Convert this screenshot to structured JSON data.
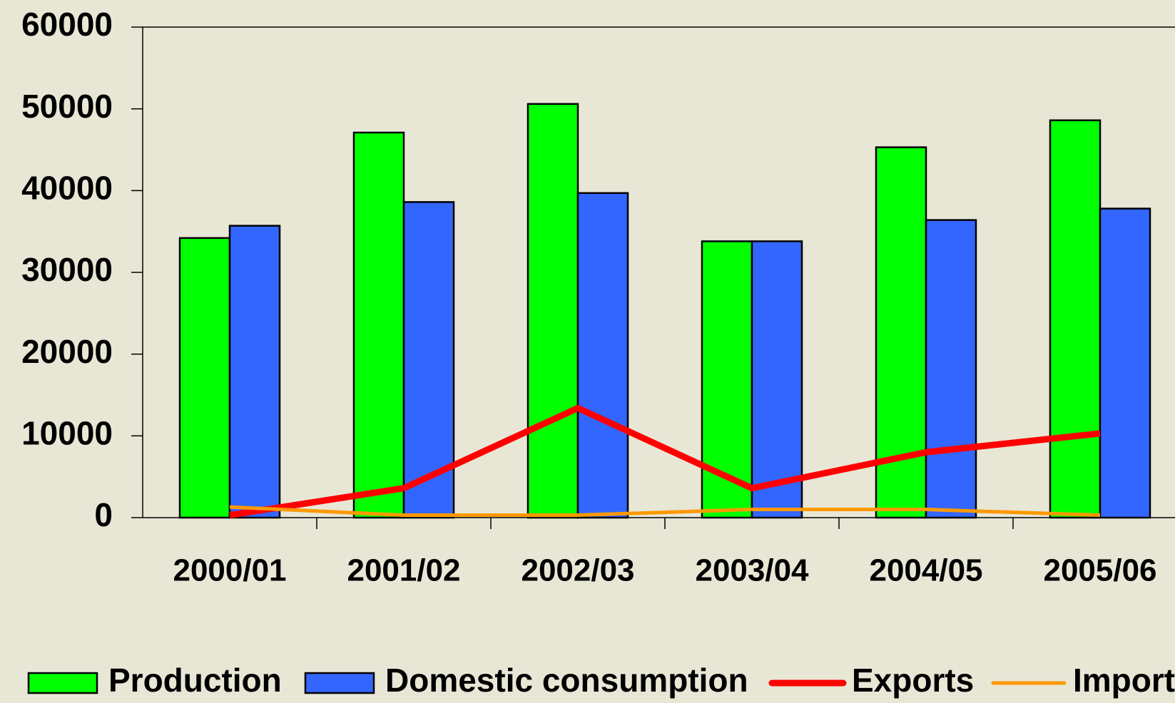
{
  "chart_data": {
    "type": "bar",
    "categories": [
      "2000/01",
      "2001/02",
      "2002/03",
      "2003/04",
      "2004/05",
      "2005/06"
    ],
    "series": [
      {
        "name": "Production",
        "type": "bar",
        "color": "#00ff00",
        "values": [
          34200,
          47100,
          50600,
          33800,
          45300,
          48600
        ]
      },
      {
        "name": "Domestic consumption",
        "type": "bar",
        "color": "#3366ff",
        "values": [
          35700,
          38600,
          39700,
          33800,
          36400,
          37800
        ]
      },
      {
        "name": "Exports",
        "type": "line",
        "color": "#ff0000",
        "values": [
          300,
          3600,
          13400,
          3600,
          8000,
          10300
        ]
      },
      {
        "name": "Imports",
        "type": "line",
        "color": "#ff9900",
        "values": [
          1300,
          300,
          300,
          1000,
          1000,
          300
        ]
      }
    ],
    "ylim": [
      0,
      60000
    ],
    "yticks": [
      0,
      10000,
      20000,
      30000,
      40000,
      50000,
      60000
    ]
  }
}
